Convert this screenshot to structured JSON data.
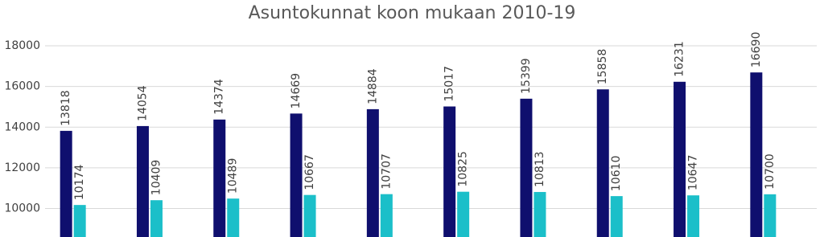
{
  "chart_data": {
    "type": "bar",
    "title": "Asuntokunnat koon mukaan 2010-19",
    "categories": [
      null,
      null,
      null,
      null,
      null,
      null,
      null,
      null,
      null,
      null
    ],
    "series": [
      {
        "color": "#0f0f6e",
        "values": [
          13818,
          14054,
          14374,
          14669,
          14884,
          15017,
          15399,
          15858,
          16231,
          16690
        ]
      },
      {
        "color": "#1bbfc9",
        "values": [
          10174,
          10409,
          10489,
          10667,
          10707,
          10825,
          10813,
          10610,
          10647,
          10700
        ]
      }
    ],
    "ylim": [
      8600,
      18000
    ],
    "yticks": [
      10000,
      12000,
      14000,
      16000,
      18000
    ],
    "grid": true
  }
}
